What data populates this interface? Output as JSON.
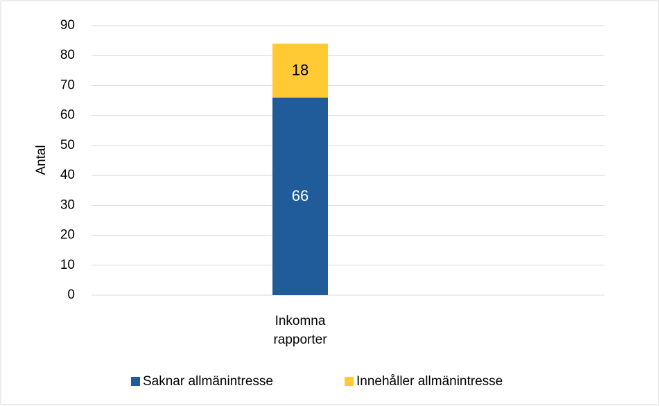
{
  "chart_data": {
    "type": "stacked_bar",
    "categories": [
      "Inkomna rapporter"
    ],
    "y_label": "Antal",
    "series": [
      {
        "name": "Saknar allmänintresse",
        "color": "#1f5c99",
        "values": [
          66
        ]
      },
      {
        "name": "Innehåller allmänintresse",
        "color": "#ffca33",
        "values": [
          18
        ]
      }
    ],
    "ylim": [
      0,
      90
    ],
    "yticks": [
      0,
      10,
      20,
      30,
      40,
      50,
      60,
      70,
      80,
      90
    ],
    "grid": true,
    "legend": "bottom"
  }
}
